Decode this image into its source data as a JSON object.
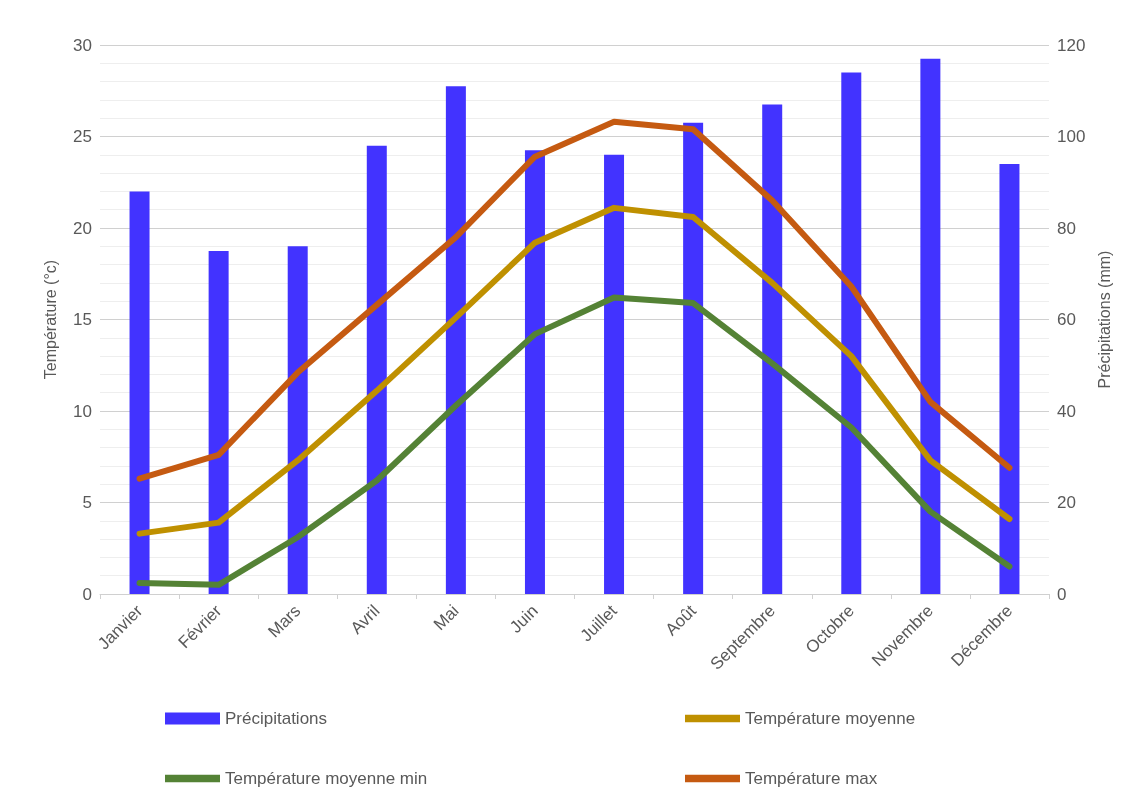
{
  "chart_data": {
    "type": "bar",
    "categories": [
      "Janvier",
      "Février",
      "Mars",
      "Avril",
      "Mai",
      "Juin",
      "Juillet",
      "Août",
      "Septembre",
      "Octobre",
      "Novembre",
      "Décembre"
    ],
    "ylabel": "Température (°c)",
    "y2label": "Précipitations (mm)",
    "ylim": [
      0,
      30
    ],
    "yticks": [
      0,
      5,
      10,
      15,
      20,
      25,
      30
    ],
    "y2lim": [
      0,
      120
    ],
    "y2ticks": [
      0,
      20,
      40,
      60,
      80,
      100,
      120
    ],
    "grid": "y",
    "legend": "bottom",
    "series": [
      {
        "name": "Précipitations",
        "axis": "y2",
        "color": "#4233ff",
        "values": [
          88,
          75,
          76,
          98,
          111,
          97,
          96,
          103,
          107,
          114,
          117,
          94
        ]
      },
      {
        "name": "Température moyenne",
        "type": "line",
        "color": "#bf9000",
        "values": [
          3.3,
          3.9,
          7.3,
          11.1,
          15.1,
          19.2,
          21.1,
          20.6,
          17.0,
          13.0,
          7.3,
          4.1
        ]
      },
      {
        "name": "Température moyenne min",
        "type": "line",
        "color": "#548235",
        "values": [
          0.6,
          0.5,
          3.1,
          6.2,
          10.3,
          14.2,
          16.2,
          15.9,
          12.6,
          9.1,
          4.5,
          1.5
        ]
      },
      {
        "name": "Température max",
        "type": "line",
        "color": "#c55a11",
        "values": [
          6.3,
          7.6,
          12.1,
          15.8,
          19.5,
          23.9,
          25.8,
          25.4,
          21.5,
          16.8,
          10.5,
          6.9
        ]
      }
    ]
  }
}
